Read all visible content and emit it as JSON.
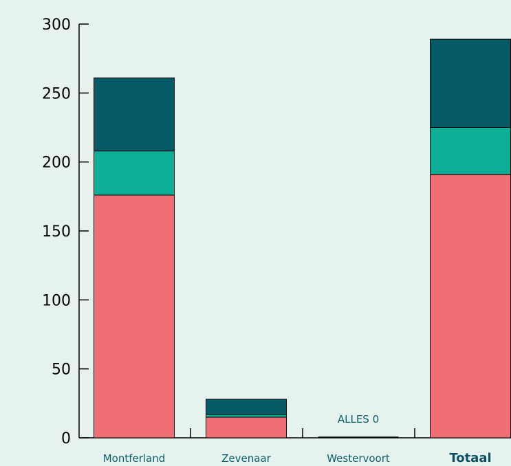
{
  "chart_data": {
    "type": "bar",
    "stacked": true,
    "categories": [
      "Montferland",
      "Zevenaar",
      "Westervoort",
      "Totaal"
    ],
    "emphasized_category": "Totaal",
    "series": [
      {
        "values": [
          176,
          15,
          0,
          191
        ],
        "color": "#ef6f75"
      },
      {
        "values": [
          32,
          2,
          0,
          34
        ],
        "color": "#0fae96"
      },
      {
        "values": [
          53,
          11,
          0,
          64
        ],
        "color": "#055a66"
      }
    ],
    "yticks": [
      "0",
      "50",
      "100",
      "150",
      "200",
      "250",
      "300"
    ],
    "ylim": [
      0,
      300
    ],
    "annotations": [
      {
        "category": "Westervoort",
        "text": "ALLES 0"
      }
    ],
    "title": "",
    "xlabel": "",
    "ylabel": "",
    "grid": false,
    "legend": "none"
  }
}
